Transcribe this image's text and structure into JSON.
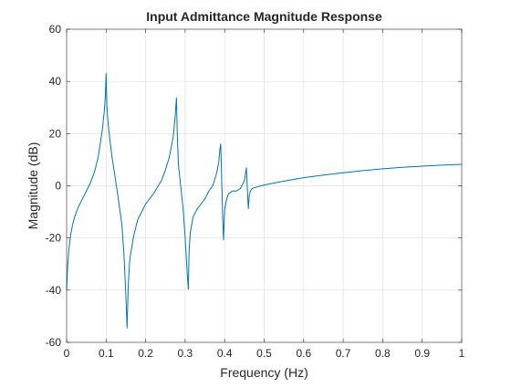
{
  "chart_data": {
    "type": "line",
    "title": "Input Admittance Magnitude Response",
    "xlabel": "Frequency (Hz)",
    "ylabel": "Magnitude (dB)",
    "xlim": [
      0,
      1
    ],
    "ylim": [
      -60,
      60
    ],
    "xticks": [
      0,
      0.1,
      0.2,
      0.3,
      0.4,
      0.5,
      0.6,
      0.7,
      0.8,
      0.9,
      1
    ],
    "xtick_labels": [
      "0",
      "0.1",
      "0.2",
      "0.3",
      "0.4",
      "0.5",
      "0.6",
      "0.7",
      "0.8",
      "0.9",
      "1"
    ],
    "yticks": [
      -60,
      -40,
      -20,
      0,
      20,
      40,
      60
    ],
    "ytick_labels": [
      "-60",
      "-40",
      "-20",
      "0",
      "20",
      "40",
      "60"
    ],
    "grid": true,
    "line_color": "#0072bd",
    "series": [
      {
        "x": [
          0.0,
          0.001,
          0.003,
          0.006,
          0.01,
          0.015,
          0.02,
          0.03,
          0.04,
          0.05,
          0.06,
          0.07,
          0.08,
          0.09,
          0.095,
          0.098,
          0.1,
          0.102,
          0.105,
          0.11,
          0.115,
          0.12,
          0.13,
          0.14,
          0.145,
          0.15,
          0.153,
          0.156,
          0.16,
          0.17,
          0.18,
          0.2,
          0.22,
          0.24,
          0.25,
          0.26,
          0.27,
          0.275,
          0.278,
          0.28,
          0.283,
          0.29,
          0.295,
          0.3,
          0.305,
          0.308,
          0.31,
          0.313,
          0.32,
          0.33,
          0.34,
          0.35,
          0.36,
          0.37,
          0.38,
          0.385,
          0.388,
          0.39,
          0.392,
          0.395,
          0.397,
          0.4,
          0.405,
          0.41,
          0.42,
          0.43,
          0.44,
          0.45,
          0.453,
          0.455,
          0.457,
          0.459,
          0.46,
          0.462,
          0.465,
          0.47,
          0.48,
          0.5,
          0.55,
          0.6,
          0.65,
          0.7,
          0.75,
          0.8,
          0.85,
          0.9,
          0.95,
          1.0
        ],
        "y": [
          -40,
          -36,
          -30,
          -24,
          -19,
          -15,
          -12,
          -8,
          -5,
          -2,
          1,
          5,
          11,
          21,
          28,
          34,
          43,
          30,
          24,
          17,
          11,
          6,
          -4,
          -15,
          -26,
          -42,
          -54.5,
          -38,
          -28,
          -19,
          -13,
          -7,
          -3,
          2,
          6,
          11,
          19,
          27,
          33.7,
          20,
          8,
          -2,
          -9,
          -20,
          -33,
          -39.7,
          -25,
          -18,
          -12,
          -9,
          -7,
          -5,
          -2,
          0,
          5,
          9,
          14,
          16,
          5,
          -12,
          -20.7,
          -9,
          -5,
          -3,
          -2,
          -2,
          -1,
          2,
          5,
          6.9,
          0,
          -6,
          -8.8,
          -4,
          -2,
          -1,
          -0.5,
          0.3,
          1.8,
          3.1,
          4.1,
          5.0,
          5.8,
          6.5,
          7.1,
          7.5,
          7.9,
          8.2
        ]
      }
    ]
  }
}
